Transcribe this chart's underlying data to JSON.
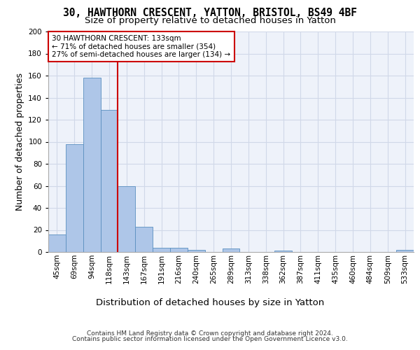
{
  "title_line1": "30, HAWTHORN CRESCENT, YATTON, BRISTOL, BS49 4BF",
  "title_line2": "Size of property relative to detached houses in Yatton",
  "xlabel": "Distribution of detached houses by size in Yatton",
  "ylabel": "Number of detached properties",
  "categories": [
    "45sqm",
    "69sqm",
    "94sqm",
    "118sqm",
    "143sqm",
    "167sqm",
    "191sqm",
    "216sqm",
    "240sqm",
    "265sqm",
    "289sqm",
    "313sqm",
    "338sqm",
    "362sqm",
    "387sqm",
    "411sqm",
    "435sqm",
    "460sqm",
    "484sqm",
    "509sqm",
    "533sqm"
  ],
  "values": [
    16,
    98,
    158,
    129,
    60,
    23,
    4,
    4,
    2,
    0,
    3,
    0,
    0,
    1,
    0,
    0,
    0,
    0,
    0,
    0,
    2
  ],
  "bar_color": "#aec6e8",
  "bar_edge_color": "#5a8fc0",
  "ref_line_color": "#cc0000",
  "annotation_text": "30 HAWTHORN CRESCENT: 133sqm\n← 71% of detached houses are smaller (354)\n27% of semi-detached houses are larger (134) →",
  "annotation_box_color": "#ffffff",
  "annotation_box_edge_color": "#cc0000",
  "ylim": [
    0,
    200
  ],
  "yticks": [
    0,
    20,
    40,
    60,
    80,
    100,
    120,
    140,
    160,
    180,
    200
  ],
  "grid_color": "#d0d8e8",
  "background_color": "#eef2fa",
  "footer_line1": "Contains HM Land Registry data © Crown copyright and database right 2024.",
  "footer_line2": "Contains public sector information licensed under the Open Government Licence v3.0.",
  "title_fontsize": 10.5,
  "subtitle_fontsize": 9.5,
  "axis_label_fontsize": 9,
  "tick_fontsize": 7.5,
  "annotation_fontsize": 7.5,
  "footer_fontsize": 6.5
}
